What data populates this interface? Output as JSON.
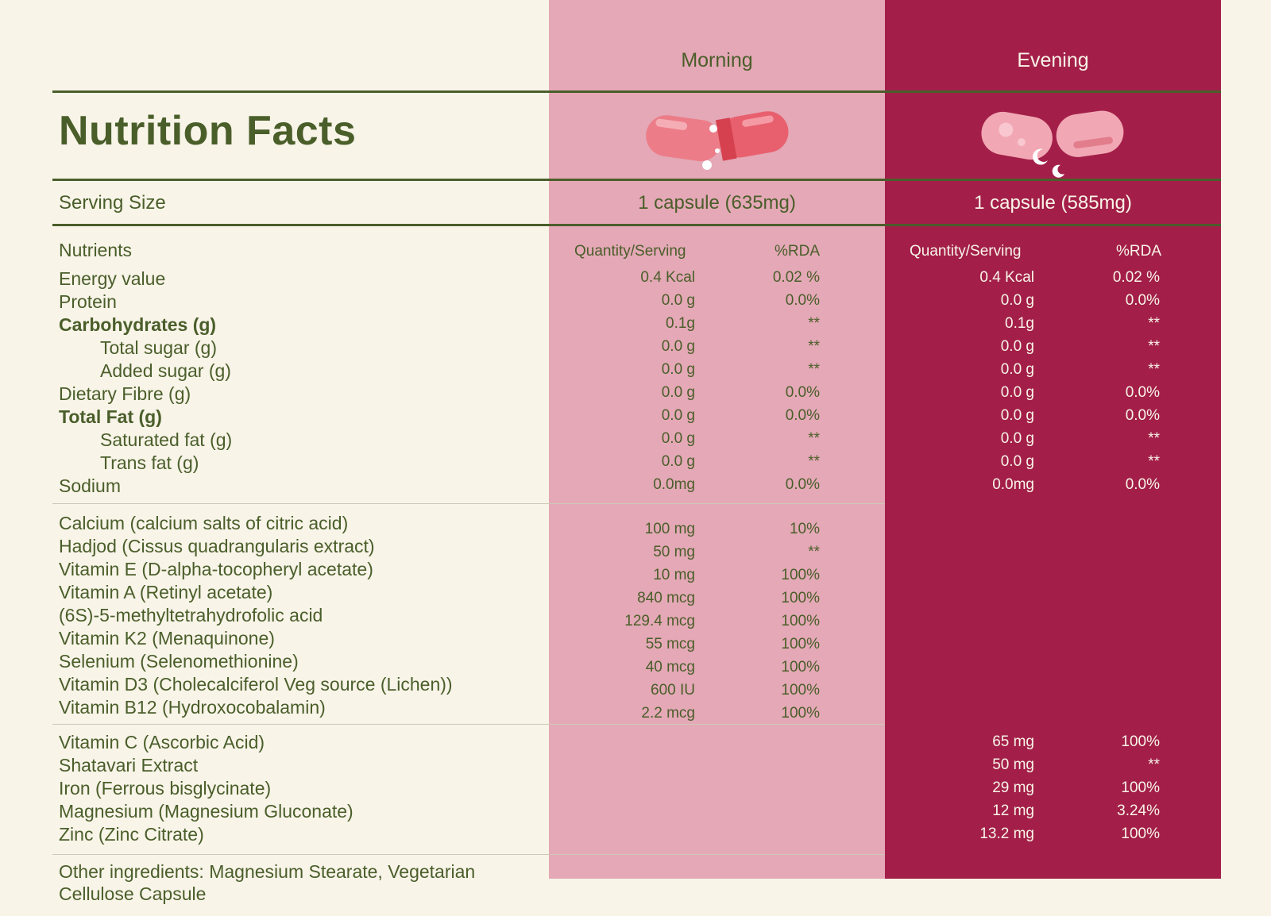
{
  "columns": {
    "morning": "Morning",
    "evening": "Evening"
  },
  "title": "Nutrition Facts",
  "serving": {
    "label": "Serving Size",
    "morning": "1 capsule (635mg)",
    "evening": "1 capsule (585mg)"
  },
  "table_header": {
    "nutrients": "Nutrients",
    "m_qty": "Quantity/Serving",
    "m_rda": "%RDA",
    "e_qty": "Quantity/Serving",
    "e_rda": "%RDA"
  },
  "section1": [
    {
      "label": "Energy value",
      "mq": "0.4 Kcal",
      "mr": "0.02 %",
      "eq": "0.4 Kcal",
      "er": "0.02 %"
    },
    {
      "label": "Protein",
      "mq": "0.0 g",
      "mr": "0.0%",
      "eq": "0.0 g",
      "er": "0.0%"
    },
    {
      "label": "Carbohydrates (g)",
      "mq": "0.1g",
      "mr": "**",
      "eq": "0.1g",
      "er": "**"
    },
    {
      "label": "Total sugar (g)",
      "mq": "0.0 g",
      "mr": "**",
      "eq": "0.0 g",
      "er": "**"
    },
    {
      "label": "Added sugar (g)",
      "mq": "0.0 g",
      "mr": "**",
      "eq": "0.0 g",
      "er": "**"
    },
    {
      "label": "Dietary Fibre (g)",
      "mq": "0.0 g",
      "mr": "0.0%",
      "eq": "0.0 g",
      "er": "0.0%"
    },
    {
      "label": "Total Fat (g)",
      "mq": "0.0 g",
      "mr": "0.0%",
      "eq": "0.0 g",
      "er": "0.0%"
    },
    {
      "label": "Saturated fat (g)",
      "mq": "0.0 g",
      "mr": "**",
      "eq": "0.0 g",
      "er": "**"
    },
    {
      "label": "Trans fat (g)",
      "mq": "0.0 g",
      "mr": "**",
      "eq": "0.0 g",
      "er": "**"
    },
    {
      "label": "Sodium",
      "mq": "0.0mg",
      "mr": "0.0%",
      "eq": "0.0mg",
      "er": "0.0%"
    }
  ],
  "section2": [
    {
      "label": "Calcium (calcium salts of citric acid)",
      "mq": "100 mg",
      "mr": "10%"
    },
    {
      "label": "Hadjod (Cissus quadrangularis extract)",
      "mq": "50 mg",
      "mr": "**"
    },
    {
      "label": "Vitamin E (D-alpha-tocopheryl acetate)",
      "mq": "10 mg",
      "mr": "100%"
    },
    {
      "label": "Vitamin A (Retinyl acetate)",
      "mq": "840 mcg",
      "mr": "100%"
    },
    {
      "label": "(6S)-5-methyltetrahydrofolic acid",
      "mq": "129.4 mcg",
      "mr": "100%"
    },
    {
      "label": "Vitamin K2 (Menaquinone)",
      "mq": "55 mcg",
      "mr": "100%"
    },
    {
      "label": "Selenium  (Selenomethionine)",
      "mq": "40 mcg",
      "mr": "100%"
    },
    {
      "label": "Vitamin D3 (Cholecalciferol Veg source (Lichen))",
      "mq": "600 IU",
      "mr": "100%"
    },
    {
      "label": "Vitamin B12 (Hydroxocobalamin)",
      "mq": "2.2 mcg",
      "mr": "100%"
    }
  ],
  "section3": [
    {
      "label": "Vitamin C (Ascorbic Acid)",
      "eq": "65 mg",
      "er": "100%"
    },
    {
      "label": "Shatavari Extract",
      "eq": "50 mg",
      "er": "**"
    },
    {
      "label": "Iron (Ferrous bisglycinate)",
      "eq": "29 mg",
      "er": "100%"
    },
    {
      "label": "Magnesium (Magnesium Gluconate)",
      "eq": "12 mg",
      "er": "3.24%"
    },
    {
      "label": "Zinc (Zinc Citrate)",
      "eq": "13.2 mg",
      "er": "100%"
    }
  ],
  "other": "Other ingredients: Magnesium Stearate, Vegetarian Cellulose Capsule",
  "colors": {
    "morning_bg": "#e4a8b6",
    "evening_bg": "#a31f49",
    "text": "#4a5e2a",
    "page_bg": "#f8f4e8"
  },
  "icons": {
    "morning": "capsule-sun-icon",
    "evening": "capsule-moon-icon"
  }
}
